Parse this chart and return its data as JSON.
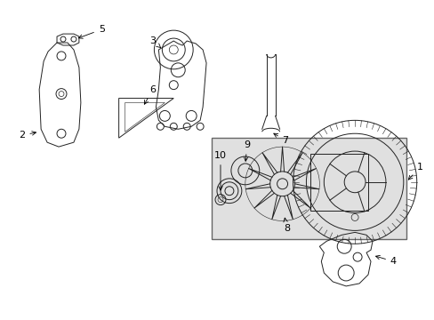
{
  "bg_color": "#ffffff",
  "part_color": "#222222",
  "box_bg": "#e0e0e0",
  "box_border": "#666666",
  "font_size": 8,
  "lw": 0.7
}
